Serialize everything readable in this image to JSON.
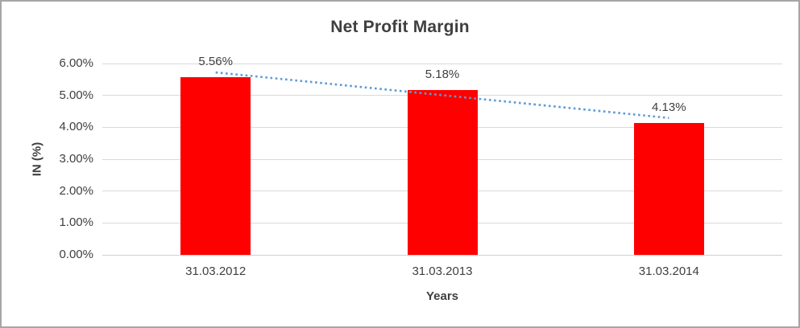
{
  "frame": {
    "background": "#FFFFFF",
    "border_color": "#A6A6A6"
  },
  "chart_data": {
    "type": "bar",
    "title": "Net Profit Margin",
    "xlabel": "Years",
    "ylabel": "IN (%)",
    "categories": [
      "31.03.2012",
      "31.03.2013",
      "31.03.2014"
    ],
    "values": [
      5.56,
      5.18,
      4.13
    ],
    "data_labels": [
      "5.56%",
      "5.18%",
      "4.13%"
    ],
    "y_ticks": [
      "6.00%",
      "5.00%",
      "4.00%",
      "3.00%",
      "2.00%",
      "1.00%",
      "0.00%"
    ],
    "ylim": [
      0,
      6
    ],
    "grid": true,
    "legend": "none",
    "bar_color": "#FF0000",
    "gridline_color": "#D9D9D9",
    "axis_line_color": "#D0D0D0",
    "text_color": "#404040",
    "title_color": "#3F3F3F",
    "trendline": {
      "type": "linear",
      "style": "dotted",
      "color": "#5B9BD5"
    }
  }
}
